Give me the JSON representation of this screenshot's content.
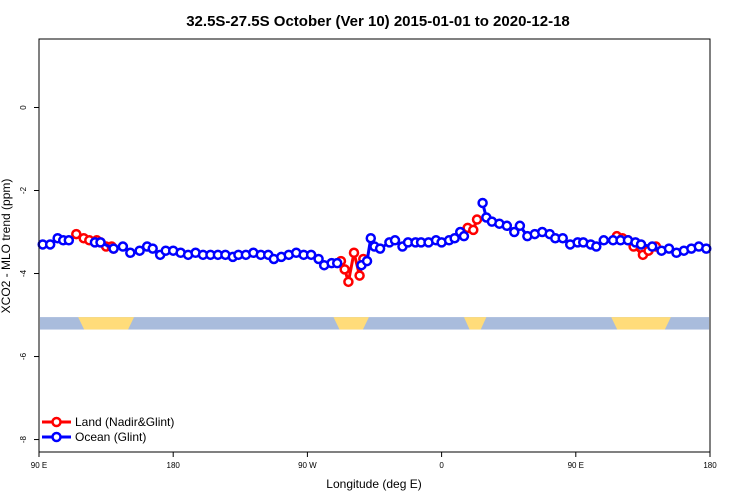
{
  "chart_data": {
    "type": "line",
    "title": "32.5S-27.5S October (Ver 10)   2015-01-01 to 2020-12-18",
    "xlabel": "Longitude (deg E)",
    "ylabel": "XCO2 - MLO trend (ppm)",
    "xlim": [
      90,
      450
    ],
    "ylim": [
      -8.3,
      1.65
    ],
    "x_ticks": [
      {
        "value": 90,
        "label": "90 E"
      },
      {
        "value": 162,
        "label": "180"
      },
      {
        "value": 234,
        "label": "90 W"
      },
      {
        "value": 306,
        "label": "0"
      },
      {
        "value": 378,
        "label": "90 E"
      },
      {
        "value": 450,
        "label": "180"
      }
    ],
    "y_ticks": [
      0,
      -2,
      -4,
      -6,
      -8
    ],
    "legend_position": "bottom-left",
    "land_mask": {
      "y_range": [
        -5.35,
        -5.05
      ],
      "ocean_color": "#A9BCDC",
      "land_color": "#FFDC7A",
      "land_segments": [
        [
          111,
          141
        ],
        [
          248,
          267
        ],
        [
          318,
          330
        ],
        [
          397,
          429
        ]
      ]
    },
    "series": [
      {
        "name": "Land (Nadir&Glint)",
        "color": "#FF0000",
        "x": [
          110,
          114,
          117,
          121,
          123,
          126,
          129,
          130,
          252,
          254,
          256,
          259,
          262,
          264,
          320,
          323,
          325,
          400,
          403,
          406,
          409,
          414,
          417,
          421
        ],
        "y": [
          -3.05,
          -3.15,
          -3.2,
          -3.2,
          -3.25,
          -3.35,
          -3.35,
          -3.4,
          -3.7,
          -3.9,
          -4.2,
          -3.5,
          -4.05,
          -3.65,
          -2.9,
          -2.95,
          -2.7,
          -3.1,
          -3.15,
          -3.2,
          -3.35,
          -3.55,
          -3.45,
          -3.35
        ]
      },
      {
        "name": "Ocean (Glint)",
        "color": "#0000FF",
        "x": [
          92,
          96,
          100,
          103,
          106,
          120,
          123,
          130,
          135,
          139,
          144,
          148,
          151,
          155,
          158,
          162,
          166,
          170,
          174,
          178,
          182,
          186,
          190,
          194,
          197,
          201,
          205,
          209,
          213,
          216,
          220,
          224,
          228,
          232,
          236,
          240,
          243,
          247,
          250,
          263,
          266,
          268,
          270,
          273,
          278,
          281,
          285,
          288,
          292,
          295,
          299,
          303,
          306,
          310,
          313,
          316,
          318,
          328,
          330,
          333,
          337,
          341,
          345,
          348,
          352,
          356,
          360,
          364,
          367,
          371,
          375,
          379,
          382,
          386,
          389,
          393,
          398,
          402,
          406,
          410,
          413,
          419,
          424,
          428,
          432,
          436,
          440,
          444,
          448
        ],
        "y": [
          -3.3,
          -3.3,
          -3.15,
          -3.2,
          -3.2,
          -3.25,
          -3.25,
          -3.4,
          -3.35,
          -3.5,
          -3.45,
          -3.35,
          -3.4,
          -3.55,
          -3.45,
          -3.45,
          -3.5,
          -3.55,
          -3.5,
          -3.55,
          -3.55,
          -3.55,
          -3.55,
          -3.6,
          -3.55,
          -3.55,
          -3.5,
          -3.55,
          -3.55,
          -3.65,
          -3.6,
          -3.55,
          -3.5,
          -3.55,
          -3.55,
          -3.65,
          -3.8,
          -3.75,
          -3.75,
          -3.8,
          -3.7,
          -3.15,
          -3.35,
          -3.4,
          -3.25,
          -3.2,
          -3.35,
          -3.25,
          -3.25,
          -3.25,
          -3.25,
          -3.2,
          -3.25,
          -3.2,
          -3.15,
          -3.0,
          -3.1,
          -2.3,
          -2.65,
          -2.75,
          -2.8,
          -2.85,
          -3.0,
          -2.85,
          -3.1,
          -3.05,
          -3.0,
          -3.05,
          -3.15,
          -3.15,
          -3.3,
          -3.25,
          -3.25,
          -3.3,
          -3.35,
          -3.2,
          -3.2,
          -3.2,
          -3.2,
          -3.25,
          -3.3,
          -3.35,
          -3.45,
          -3.4,
          -3.5,
          -3.45,
          -3.4,
          -3.35,
          -3.4
        ]
      }
    ]
  }
}
